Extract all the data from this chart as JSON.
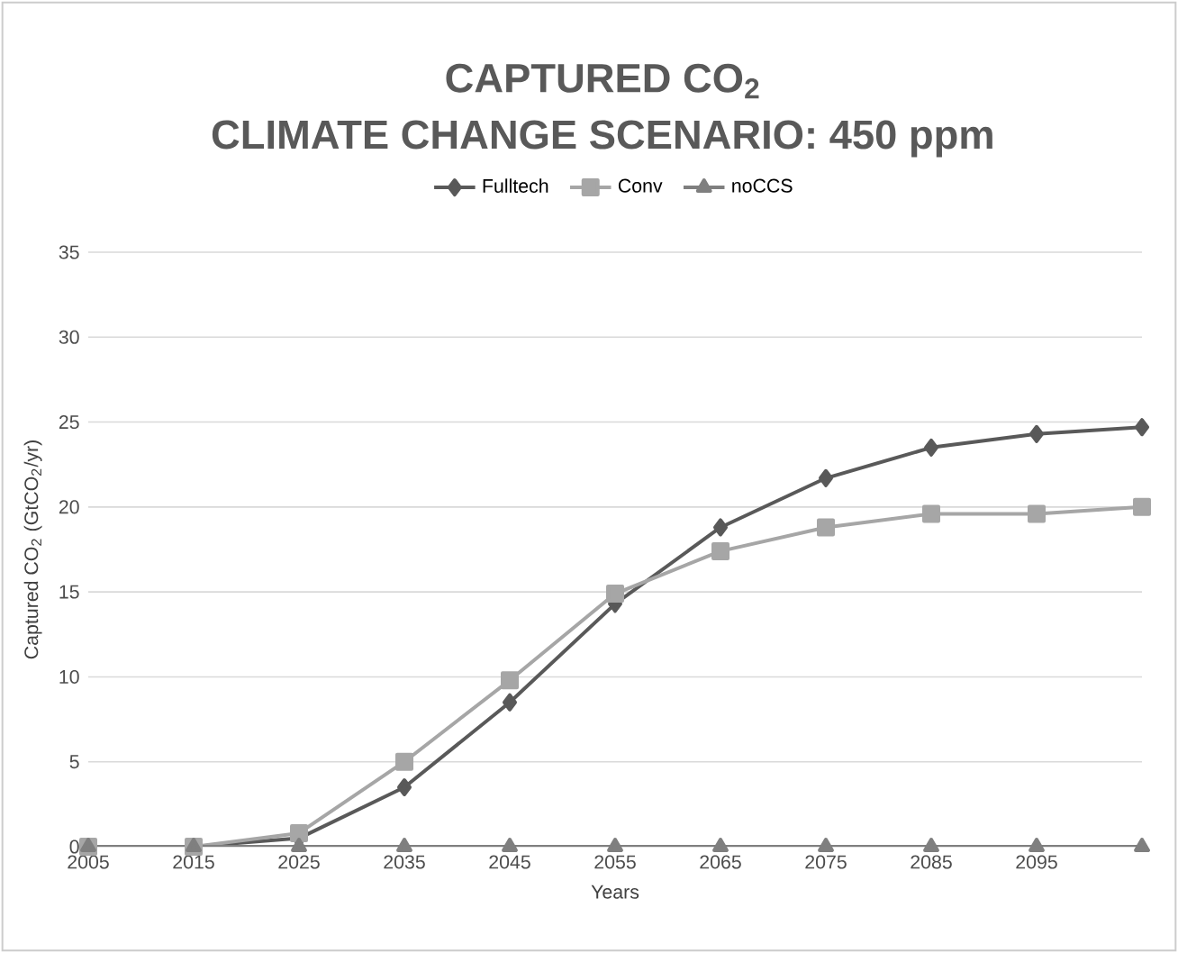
{
  "chart_data": {
    "type": "line",
    "title": "CAPTURED CO$_{2}$",
    "subtitle": "CLIMATE CHANGE SCENARIO: 450 ppm",
    "xlabel": "Years",
    "ylabel": "Captured CO$_{2}$ (GtCO$_{2}$/yr)",
    "categories": [
      "2005",
      "2015",
      "2025",
      "2035",
      "2045",
      "2055",
      "2065",
      "2075",
      "2085",
      "2095",
      null
    ],
    "series": [
      {
        "name": "Fulltech",
        "color": "#595959",
        "marker": "diamond",
        "values": [
          0,
          0,
          0.5,
          3.5,
          8.5,
          14.3,
          18.8,
          21.7,
          23.5,
          24.3,
          24.7
        ]
      },
      {
        "name": "Conv",
        "color": "#a6a6a6",
        "marker": "square",
        "values": [
          0,
          0,
          0.8,
          5,
          9.8,
          14.9,
          17.4,
          18.8,
          19.6,
          19.6,
          20
        ]
      },
      {
        "name": "noCCS",
        "color": "#7f7f7f",
        "marker": "triangle",
        "values": [
          0,
          0,
          0,
          0,
          0,
          0,
          0,
          0,
          0,
          0,
          0
        ]
      }
    ],
    "ylim": [
      0,
      35
    ],
    "yticks": [
      0,
      5,
      10,
      15,
      20,
      25,
      30,
      35
    ],
    "grid": "y",
    "legend": "top",
    "line_style": "solid"
  }
}
